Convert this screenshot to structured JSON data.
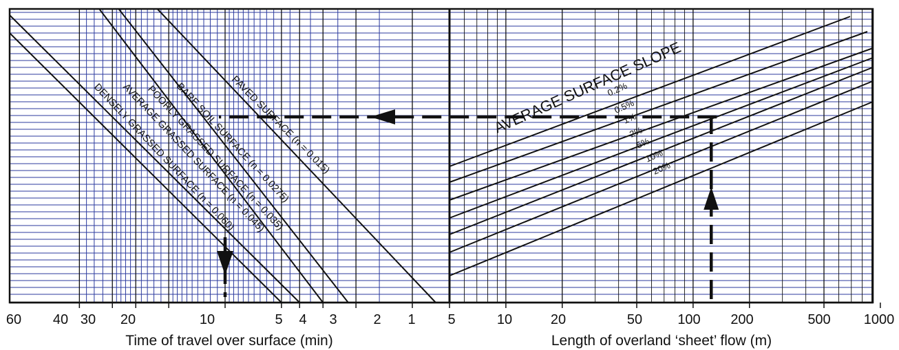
{
  "colors": {
    "grid": "#2b3a9e",
    "ink": "#111111",
    "background": "#ffffff"
  },
  "chart_data": [
    {
      "type": "line",
      "panel": "left",
      "xlabel": "Time of travel over surface (min)",
      "x_axis_reversed": true,
      "x_scale": "log",
      "xlim": [
        60,
        0.75
      ],
      "x_ticks": [
        "60",
        "40",
        "30",
        "20",
        "10",
        "5",
        "4",
        "3",
        "2",
        "1"
      ],
      "grid": true,
      "series": [
        {
          "name": "PAVED SURFACE (n = 0.015)",
          "x_at_top": 23,
          "x_at_bottom": 0.75
        },
        {
          "name": "BARE SOIL SURFACE (n = 0.0275)",
          "x_at_top": 37,
          "x_at_bottom": 2.2
        },
        {
          "name": "POORLY GRASSED SURFACE (n = 0.035)",
          "x_at_top": 47,
          "x_at_bottom": 3.0
        },
        {
          "name": "AVERAGE GRASSED SURFACE (n = 0.045)",
          "x_at_top": 60,
          "x_at_bottom": 4.0
        },
        {
          "name": "DENSELY GRASSED SURFACE (n = 0.060)",
          "x_at_top": 60,
          "x_at_bottom": 5.0
        }
      ]
    },
    {
      "type": "line",
      "panel": "right",
      "title": "AVERAGE SURFACE SLOPE",
      "xlabel": "Length of overland ‘sheet’ flow (m)",
      "x_scale": "log",
      "xlim": [
        5,
        1000
      ],
      "x_ticks": [
        "5",
        "10",
        "20",
        "50",
        "100",
        "200",
        "500",
        "1000"
      ],
      "grid": true,
      "series": [
        {
          "name": "0.2%",
          "start_x": 5,
          "end_x": 1000
        },
        {
          "name": "0.5%",
          "start_x": 5,
          "end_x": 1000
        },
        {
          "name": "1%",
          "start_x": 5,
          "end_x": 1000
        },
        {
          "name": "2%",
          "start_x": 5,
          "end_x": 1000
        },
        {
          "name": "5%",
          "start_x": 5,
          "end_x": 1000
        },
        {
          "name": "10%",
          "start_x": 5,
          "end_x": 1000
        },
        {
          "name": "20%",
          "start_x": 5,
          "end_x": 1000
        }
      ],
      "example_path": {
        "length_m": 125,
        "slope": "1%",
        "surface": "PAVED SURFACE (n = 0.015)",
        "result_time_min": 10
      }
    }
  ]
}
